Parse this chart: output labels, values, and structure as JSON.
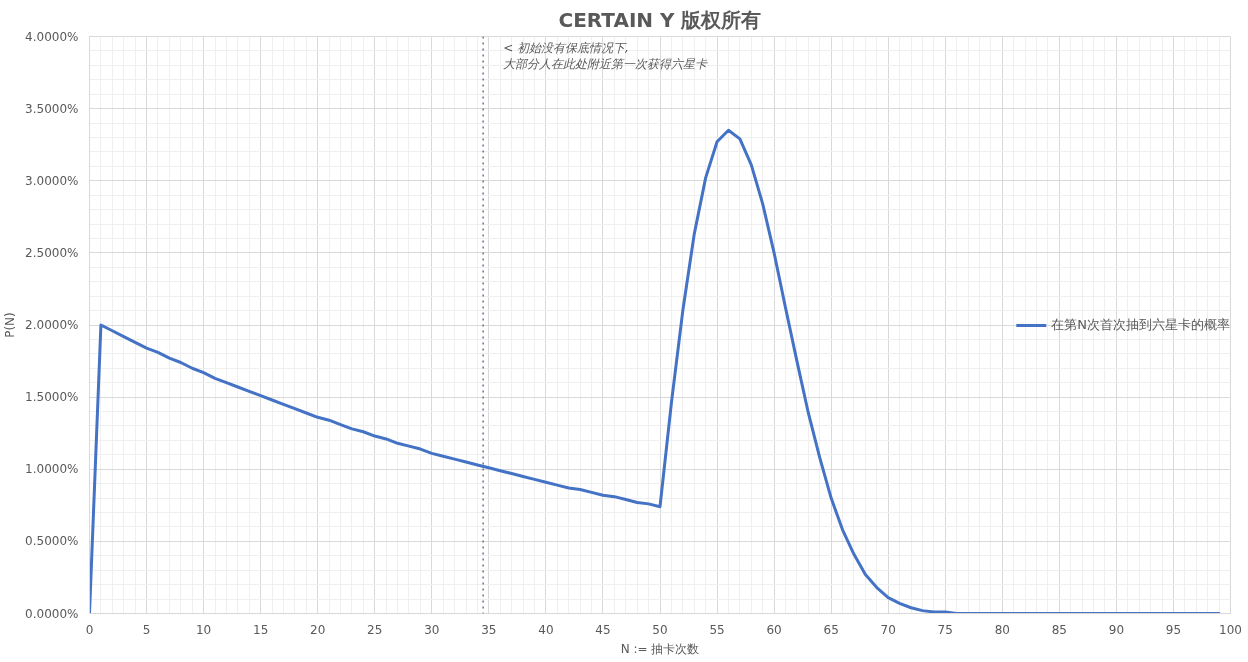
{
  "chart_data": {
    "type": "line",
    "title": "CERTAIN Y 版权所有",
    "xlabel": "N := 抽卡次数",
    "ylabel": "P(N)",
    "x": [
      0,
      1,
      2,
      3,
      4,
      5,
      6,
      7,
      8,
      9,
      10,
      11,
      12,
      13,
      14,
      15,
      16,
      17,
      18,
      19,
      20,
      21,
      22,
      23,
      24,
      25,
      26,
      27,
      28,
      29,
      30,
      31,
      32,
      33,
      34,
      35,
      36,
      37,
      38,
      39,
      40,
      41,
      42,
      43,
      44,
      45,
      46,
      47,
      48,
      49,
      50,
      51,
      52,
      53,
      54,
      55,
      56,
      57,
      58,
      59,
      60,
      61,
      62,
      63,
      64,
      65,
      66,
      67,
      68,
      69,
      70,
      71,
      72,
      73,
      74,
      75,
      76,
      77,
      78,
      79,
      80,
      81,
      82,
      83,
      84,
      85,
      86,
      87,
      88,
      89,
      90,
      91,
      92,
      93,
      94,
      95,
      96,
      97,
      98,
      99
    ],
    "series": [
      {
        "name": "在第N次首次抽到六星卡的概率",
        "color": "#4472c4",
        "values": [
          0,
          2.0,
          1.96,
          1.92,
          1.88,
          1.84,
          1.81,
          1.77,
          1.74,
          1.7,
          1.67,
          1.63,
          1.6,
          1.57,
          1.54,
          1.51,
          1.48,
          1.45,
          1.42,
          1.39,
          1.36,
          1.34,
          1.31,
          1.28,
          1.26,
          1.23,
          1.21,
          1.18,
          1.16,
          1.14,
          1.11,
          1.09,
          1.07,
          1.05,
          1.03,
          1.01,
          0.99,
          0.97,
          0.95,
          0.93,
          0.91,
          0.89,
          0.87,
          0.86,
          0.84,
          0.82,
          0.81,
          0.79,
          0.77,
          0.76,
          0.74,
          1.46,
          2.1,
          2.63,
          3.02,
          3.27,
          3.35,
          3.29,
          3.11,
          2.84,
          2.5,
          2.12,
          1.75,
          1.39,
          1.08,
          0.8,
          0.58,
          0.41,
          0.27,
          0.18,
          0.11,
          0.07,
          0.04,
          0.02,
          0.01,
          0.01,
          0,
          0,
          0,
          0,
          0,
          0,
          0,
          0,
          0,
          0,
          0,
          0,
          0,
          0,
          0,
          0,
          0,
          0,
          0,
          0,
          0,
          0,
          0,
          0
        ]
      }
    ],
    "xlim": [
      0,
      100
    ],
    "xticks": [
      0,
      5,
      10,
      15,
      20,
      25,
      30,
      35,
      40,
      45,
      50,
      55,
      60,
      65,
      70,
      75,
      80,
      85,
      90,
      95,
      100
    ],
    "ylim": [
      0,
      4
    ],
    "yticks": [
      {
        "value": 0,
        "label": "0.0000%"
      },
      {
        "value": 0.5,
        "label": "0.5000%"
      },
      {
        "value": 1,
        "label": "1.0000%"
      },
      {
        "value": 1.5,
        "label": "1.5000%"
      },
      {
        "value": 2,
        "label": "2.0000%"
      },
      {
        "value": 2.5,
        "label": "2.5000%"
      },
      {
        "value": 3,
        "label": "3.0000%"
      },
      {
        "value": 3.5,
        "label": "3.5000%"
      },
      {
        "value": 4,
        "label": "4.0000%"
      }
    ],
    "ref_lines": [
      {
        "axis": "x",
        "value": 34.5,
        "label": "< 初始没有保底情况下,\n   大部分人在此处附近第一次获得六星卡",
        "color": "#6e6e8e",
        "line_style": "dotted"
      }
    ],
    "grid": true,
    "legend": "right",
    "marker": "none",
    "line_style": "solid"
  }
}
